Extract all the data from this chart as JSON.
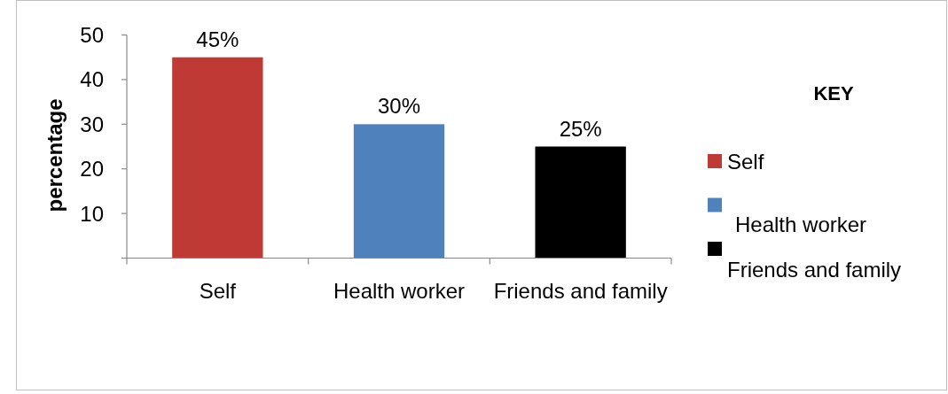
{
  "chart_data": {
    "type": "bar",
    "ylabel": "percentage",
    "legend_title": "KEY",
    "legend": "right",
    "stacked": true,
    "categories": [
      "Self",
      "Health worker",
      "Friends and family"
    ],
    "series": [
      {
        "name": "Self",
        "color": "#bf3a35",
        "values": [
          45,
          null,
          null
        ],
        "value_labels": [
          "45%",
          null,
          null
        ]
      },
      {
        "name": "Health worker",
        "color": "#4f81bd",
        "values": [
          null,
          30,
          null
        ],
        "value_labels": [
          null,
          "30%",
          null
        ]
      },
      {
        "name": "Friends and family",
        "color": "#000000",
        "values": [
          null,
          null,
          25
        ],
        "value_labels": [
          null,
          null,
          "25%"
        ]
      }
    ],
    "ylim": [
      0,
      50
    ],
    "yticks": [
      {
        "value": 0,
        "label": null
      },
      10,
      20,
      30,
      40,
      50
    ]
  }
}
